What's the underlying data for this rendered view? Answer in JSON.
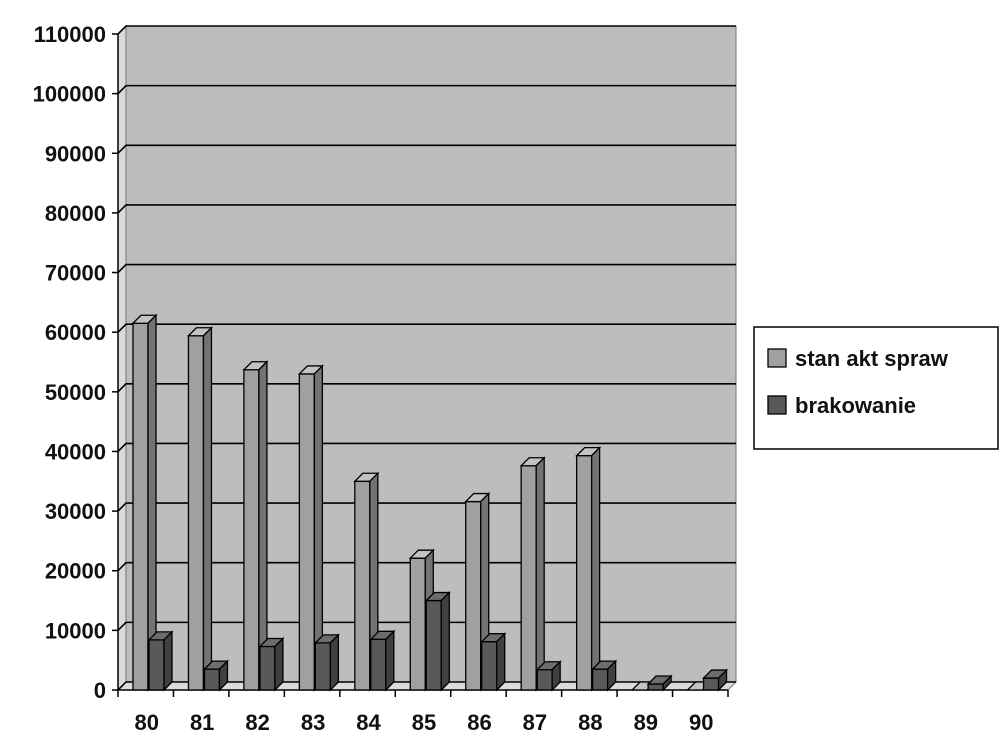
{
  "chart_data": {
    "type": "bar",
    "categories": [
      "80",
      "81",
      "82",
      "83",
      "84",
      "85",
      "86",
      "87",
      "88",
      "89",
      "90"
    ],
    "series": [
      {
        "name": "stan akt spraw",
        "color": "#a0a0a0",
        "values": [
          61500,
          59400,
          53700,
          53000,
          35000,
          22100,
          31600,
          37600,
          39300,
          0,
          0
        ]
      },
      {
        "name": "brakowanie",
        "color": "#595959",
        "values": [
          8400,
          3500,
          7300,
          7900,
          8500,
          15000,
          8100,
          3400,
          3500,
          1000,
          2000
        ]
      }
    ],
    "ylim": [
      0,
      110000
    ],
    "yticks": [
      "0",
      "10000",
      "20000",
      "30000",
      "40000",
      "50000",
      "60000",
      "70000",
      "80000",
      "90000",
      "100000",
      "110000"
    ],
    "grid": true,
    "legend_position": "right",
    "plot_background": "#bdbdbd"
  }
}
